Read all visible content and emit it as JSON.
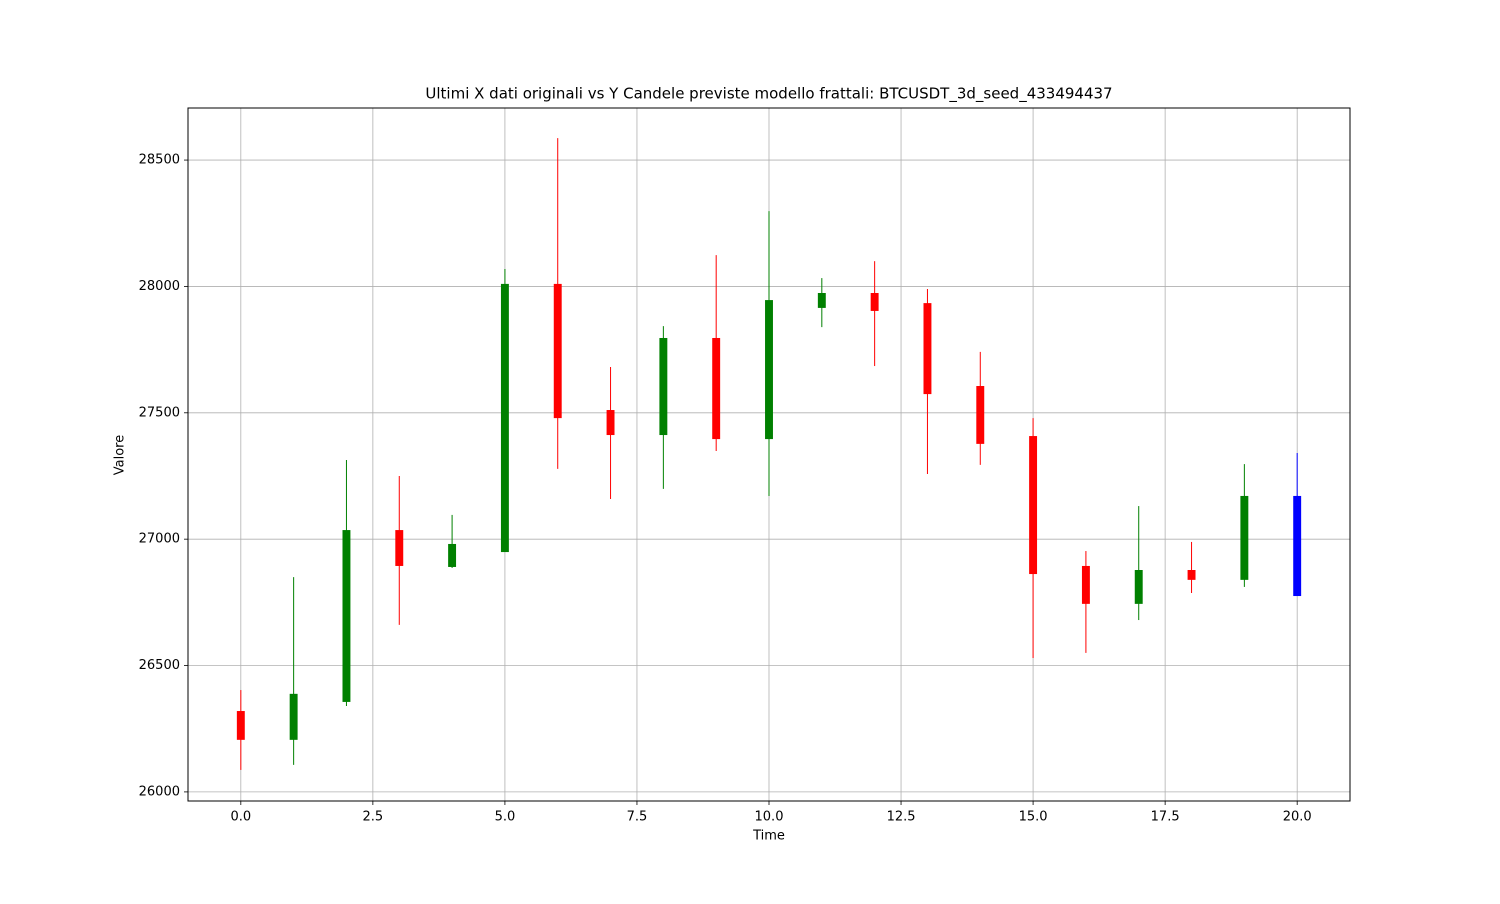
{
  "chart_data": {
    "type": "candlestick",
    "title": "Ultimi X dati originali vs Y Candele previste modello frattali: BTCUSDT_3d_seed_433494437",
    "x_label": "Time",
    "y_label": "Valore",
    "x": [
      0,
      1,
      2,
      3,
      4,
      5,
      6,
      7,
      8,
      9,
      10,
      11,
      12,
      13,
      14,
      15,
      16,
      17,
      18,
      19,
      20
    ],
    "open": [
      26320,
      26206,
      26356,
      27036,
      26890,
      26949,
      28010,
      27511,
      27412,
      27796,
      27396,
      27915,
      27974,
      27934,
      27606,
      27408,
      26894,
      26744,
      26878,
      26839,
      27171
    ],
    "high": [
      26403,
      26850,
      27313,
      27250,
      27096,
      28069,
      28587,
      27681,
      27843,
      28124,
      28298,
      28033,
      28100,
      27990,
      27741,
      27479,
      26953,
      27131,
      26989,
      27297,
      27341
    ],
    "low": [
      26087,
      26107,
      26340,
      26661,
      26886,
      26949,
      27278,
      27159,
      27199,
      27349,
      27171,
      27839,
      27685,
      27258,
      27294,
      26530,
      26550,
      26680,
      26787,
      26811,
      26775
    ],
    "close": [
      26206,
      26388,
      27036,
      26894,
      26981,
      28010,
      27479,
      27412,
      27796,
      27396,
      27946,
      27974,
      27903,
      27574,
      27377,
      26862,
      26744,
      26878,
      26839,
      27171,
      26775
    ],
    "colors": [
      "red",
      "green",
      "green",
      "red",
      "green",
      "green",
      "red",
      "red",
      "green",
      "red",
      "green",
      "green",
      "red",
      "red",
      "red",
      "red",
      "red",
      "green",
      "red",
      "green",
      "blue"
    ],
    "xlim": [
      -1,
      21
    ],
    "xticks": [
      {
        "value": 0,
        "label": "0.0"
      },
      {
        "value": 2.5,
        "label": "2.5"
      },
      {
        "value": 5,
        "label": "5.0"
      },
      {
        "value": 7.5,
        "label": "7.5"
      },
      {
        "value": 10,
        "label": "10.0"
      },
      {
        "value": 12.5,
        "label": "12.5"
      },
      {
        "value": 15,
        "label": "15.0"
      },
      {
        "value": 17.5,
        "label": "17.5"
      },
      {
        "value": 20,
        "label": "20.0"
      }
    ],
    "ylim": [
      25964,
      28706
    ],
    "yticks": [
      26000,
      26500,
      27000,
      27500,
      28000,
      28500
    ],
    "grid": true
  }
}
